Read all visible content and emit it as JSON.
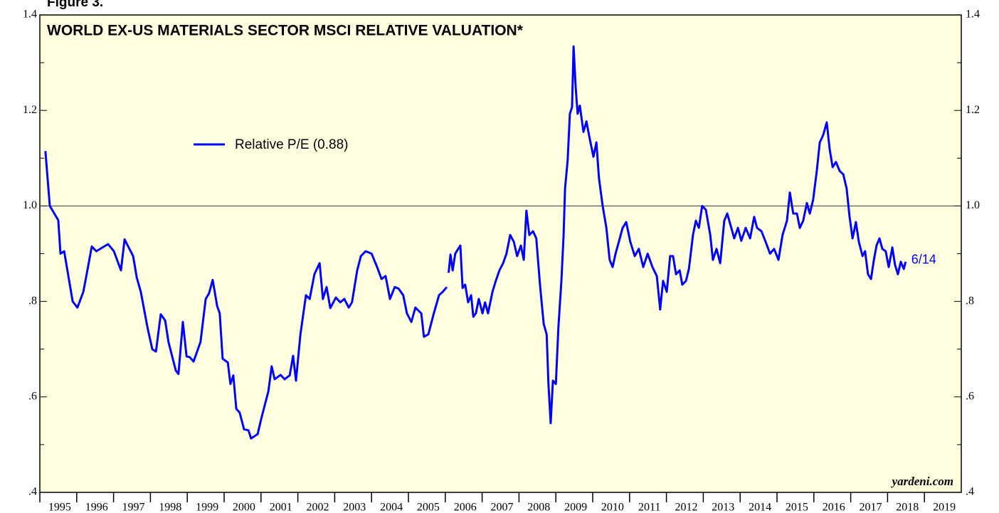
{
  "chart_data": {
    "type": "line",
    "figure_label": "Figure 3.",
    "title": "WORLD EX-US MATERIALS SECTOR MSCI RELATIVE VALUATION*",
    "source": "yardeni.com",
    "annotation": "6/14",
    "xlim": [
      1995,
      2020
    ],
    "xticks": [
      1995,
      1996,
      1997,
      1998,
      1999,
      2000,
      2001,
      2002,
      2003,
      2004,
      2005,
      2006,
      2007,
      2008,
      2009,
      2010,
      2011,
      2012,
      2013,
      2014,
      2015,
      2016,
      2017,
      2018,
      2019
    ],
    "ylim": [
      0.4,
      1.4
    ],
    "yticks": [
      {
        "value": 0.4,
        "label": ".4"
      },
      {
        "value": 0.6,
        "label": ".6"
      },
      {
        "value": 0.8,
        "label": ".8"
      },
      {
        "value": 1.0,
        "label": "1.0"
      },
      1.2,
      1.4
    ],
    "yminorticks": [
      0.5,
      0.7,
      0.9,
      1.1,
      1.3
    ],
    "reference_line": 1.0,
    "legend": "upper left",
    "x": [
      1995.15,
      1995.27,
      1995.5,
      1995.56,
      1995.66,
      1995.89,
      1996.02,
      1996.18,
      1996.27,
      1996.41,
      1996.53,
      1996.85,
      1997.01,
      1997.2,
      1997.3,
      1997.53,
      1997.63,
      1997.74,
      1997.92,
      1998.05,
      1998.15,
      1998.28,
      1998.4,
      1998.49,
      1998.69,
      1998.76,
      1998.88,
      1998.98,
      1999.07,
      1999.17,
      1999.36,
      1999.5,
      1999.59,
      1999.69,
      1999.81,
      1999.88,
      1999.96,
      2000.1,
      2000.17,
      2000.25,
      2000.33,
      2000.42,
      2000.54,
      2000.66,
      2000.73,
      2000.91,
      2001.0,
      2001.2,
      2001.29,
      2001.37,
      2001.53,
      2001.64,
      2001.78,
      2001.87,
      2001.95,
      2002.07,
      2002.22,
      2002.32,
      2002.45,
      2002.59,
      2002.68,
      2002.78,
      2002.88,
      2003.03,
      2003.15,
      2003.26,
      2003.38,
      2003.47,
      2003.61,
      2003.71,
      2003.84,
      2004.0,
      2004.15,
      2004.27,
      2004.38,
      2004.5,
      2004.63,
      2004.73,
      2004.86,
      2004.96,
      2005.08,
      2005.19,
      2005.35,
      2005.42,
      2005.54,
      2005.69,
      2005.83,
      2005.93,
      2006.04,
      2006.06,
      2006.09,
      2006.14,
      2006.2,
      2006.27,
      2006.35,
      2006.41,
      2006.47,
      2006.54,
      2006.62,
      2006.7,
      2006.76,
      2006.83,
      2006.91,
      2007.01,
      2007.08,
      2007.16,
      2007.28,
      2007.37,
      2007.47,
      2007.57,
      2007.66,
      2007.76,
      2007.86,
      2007.95,
      2008.05,
      2008.13,
      2008.2,
      2008.28,
      2008.38,
      2008.47,
      2008.57,
      2008.67,
      2008.75,
      2008.8,
      2008.86,
      2008.92,
      2009.0,
      2009.07,
      2009.15,
      2009.21,
      2009.25,
      2009.32,
      2009.38,
      2009.44,
      2009.48,
      2009.54,
      2009.59,
      2009.65,
      2009.75,
      2009.83,
      2009.92,
      2010.02,
      2010.1,
      2010.17,
      2010.27,
      2010.37,
      2010.46,
      2010.54,
      2010.62,
      2010.71,
      2010.81,
      2010.91,
      2011.02,
      2011.14,
      2011.25,
      2011.37,
      2011.49,
      2011.62,
      2011.74,
      2011.83,
      2011.91,
      2012.01,
      2012.1,
      2012.18,
      2012.26,
      2012.36,
      2012.43,
      2012.53,
      2012.61,
      2012.72,
      2012.8,
      2012.88,
      2012.97,
      2013.07,
      2013.19,
      2013.26,
      2013.36,
      2013.46,
      2013.57,
      2013.65,
      2013.76,
      2013.84,
      2013.94,
      2014.03,
      2014.15,
      2014.27,
      2014.38,
      2014.46,
      2014.58,
      2014.71,
      2014.81,
      2014.92,
      2015.04,
      2015.15,
      2015.27,
      2015.35,
      2015.44,
      2015.54,
      2015.62,
      2015.71,
      2015.81,
      2015.89,
      2015.98,
      2016.08,
      2016.16,
      2016.25,
      2016.35,
      2016.43,
      2016.51,
      2016.6,
      2016.7,
      2016.8,
      2016.89,
      2016.97,
      2017.05,
      2017.14,
      2017.22,
      2017.32,
      2017.39,
      2017.47,
      2017.55,
      2017.63,
      2017.7,
      2017.78,
      2017.86,
      2017.95,
      2018.03,
      2018.13,
      2018.2,
      2018.28,
      2018.36,
      2018.44,
      2018.49
    ],
    "series": [
      {
        "name": "Relative P/E (0.88)",
        "color": "#0000ff",
        "values": [
          1.115,
          1.0,
          0.97,
          0.9,
          0.905,
          0.8,
          0.787,
          0.82,
          0.857,
          0.915,
          0.905,
          0.92,
          0.905,
          0.865,
          0.93,
          0.895,
          0.85,
          0.82,
          0.745,
          0.7,
          0.695,
          0.773,
          0.76,
          0.715,
          0.655,
          0.648,
          0.757,
          0.685,
          0.683,
          0.674,
          0.715,
          0.805,
          0.817,
          0.845,
          0.79,
          0.775,
          0.68,
          0.672,
          0.627,
          0.645,
          0.575,
          0.567,
          0.532,
          0.53,
          0.513,
          0.522,
          0.552,
          0.612,
          0.664,
          0.637,
          0.646,
          0.637,
          0.645,
          0.686,
          0.634,
          0.731,
          0.813,
          0.805,
          0.857,
          0.88,
          0.805,
          0.83,
          0.786,
          0.808,
          0.798,
          0.805,
          0.787,
          0.798,
          0.865,
          0.895,
          0.905,
          0.9,
          0.872,
          0.847,
          0.853,
          0.805,
          0.83,
          0.827,
          0.813,
          0.775,
          0.757,
          0.787,
          0.775,
          0.726,
          0.731,
          0.775,
          0.813,
          0.82,
          0.83,
          null,
          0.86,
          0.898,
          0.865,
          0.9,
          0.91,
          0.917,
          0.828,
          0.835,
          0.798,
          0.813,
          0.768,
          0.775,
          0.805,
          0.775,
          0.798,
          0.775,
          0.82,
          0.843,
          0.865,
          0.88,
          0.9,
          0.939,
          0.925,
          0.895,
          0.917,
          0.887,
          0.99,
          0.939,
          0.947,
          0.932,
          0.835,
          0.753,
          0.731,
          0.627,
          0.545,
          0.634,
          0.627,
          0.746,
          0.843,
          0.939,
          1.036,
          1.096,
          1.193,
          1.207,
          1.334,
          1.245,
          1.193,
          1.21,
          1.155,
          1.177,
          1.14,
          1.103,
          1.133,
          1.058,
          1.0,
          0.954,
          0.887,
          0.872,
          0.9,
          0.925,
          0.954,
          0.966,
          0.925,
          0.895,
          0.91,
          0.872,
          0.9,
          0.872,
          0.853,
          0.783,
          0.843,
          0.82,
          0.895,
          0.895,
          0.857,
          0.865,
          0.835,
          0.843,
          0.868,
          0.939,
          0.969,
          0.954,
          1.0,
          0.992,
          0.939,
          0.887,
          0.91,
          0.88,
          0.969,
          0.984,
          0.954,
          0.932,
          0.954,
          0.927,
          0.954,
          0.932,
          0.977,
          0.954,
          0.947,
          0.921,
          0.9,
          0.91,
          0.887,
          0.939,
          0.969,
          1.028,
          0.984,
          0.984,
          0.954,
          0.969,
          1.006,
          0.984,
          1.013,
          1.073,
          1.133,
          1.148,
          1.175,
          1.118,
          1.081,
          1.092,
          1.073,
          1.066,
          1.036,
          0.977,
          0.932,
          0.966,
          0.925,
          0.895,
          0.905,
          0.857,
          0.847,
          0.887,
          0.917,
          0.932,
          0.91,
          0.905,
          0.872,
          0.913,
          0.877,
          0.857,
          0.883,
          0.868,
          0.883
        ]
      }
    ]
  }
}
